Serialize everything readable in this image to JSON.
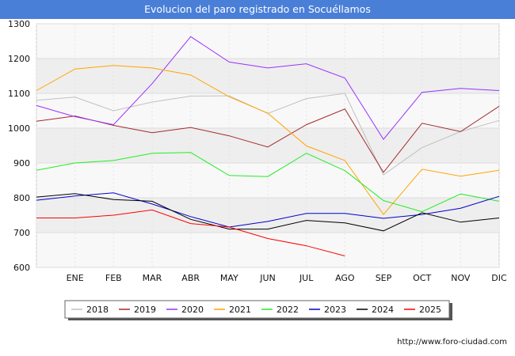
{
  "title": "Evolucion del paro registrado en Socuéllamos",
  "source": "http://www.foro-ciudad.com",
  "chart_data": {
    "type": "line",
    "title": "Evolucion del paro registrado en Socuéllamos",
    "xlabel": "",
    "ylabel": "",
    "categories": [
      "",
      "ENE",
      "FEB",
      "MAR",
      "ABR",
      "MAY",
      "JUN",
      "JUL",
      "AGO",
      "SEP",
      "OCT",
      "NOV",
      "DIC"
    ],
    "ylim": [
      600,
      1300
    ],
    "yticks": [
      600,
      700,
      800,
      900,
      1000,
      1100,
      1200,
      1300
    ],
    "grid": true,
    "legend_position": "bottom",
    "series": [
      {
        "name": "2018",
        "color": "#c0c0c0",
        "values": [
          1080,
          1089,
          1050,
          1075,
          1092,
          1093,
          1042,
          1085,
          1100,
          866,
          944,
          990,
          1022
        ]
      },
      {
        "name": "2019",
        "color": "#a52a2a",
        "values": [
          1020,
          1035,
          1008,
          987,
          1002,
          978,
          946,
          1010,
          1055,
          873,
          1014,
          990,
          1063
        ]
      },
      {
        "name": "2020",
        "color": "#9b30ff",
        "values": [
          1065,
          1033,
          1010,
          1128,
          1263,
          1190,
          1173,
          1185,
          1144,
          968,
          1103,
          1114,
          1108
        ]
      },
      {
        "name": "2021",
        "color": "#ffa500",
        "values": [
          1108,
          1170,
          1180,
          1173,
          1153,
          1090,
          1043,
          949,
          907,
          752,
          882,
          862,
          879
        ]
      },
      {
        "name": "2022",
        "color": "#22ee22",
        "values": [
          879,
          900,
          907,
          928,
          930,
          864,
          861,
          928,
          878,
          792,
          760,
          811,
          790
        ]
      },
      {
        "name": "2023",
        "color": "#0000cc",
        "values": [
          793,
          805,
          814,
          782,
          746,
          716,
          732,
          755,
          755,
          741,
          752,
          770,
          804
        ]
      },
      {
        "name": "2024",
        "color": "#000000",
        "values": [
          802,
          812,
          795,
          790,
          738,
          710,
          710,
          735,
          728,
          705,
          757,
          730,
          742
        ]
      },
      {
        "name": "2025",
        "color": "#ff0000",
        "values": [
          742,
          742,
          750,
          765,
          726,
          716,
          683,
          662,
          633,
          null,
          null,
          null,
          null
        ]
      }
    ]
  }
}
